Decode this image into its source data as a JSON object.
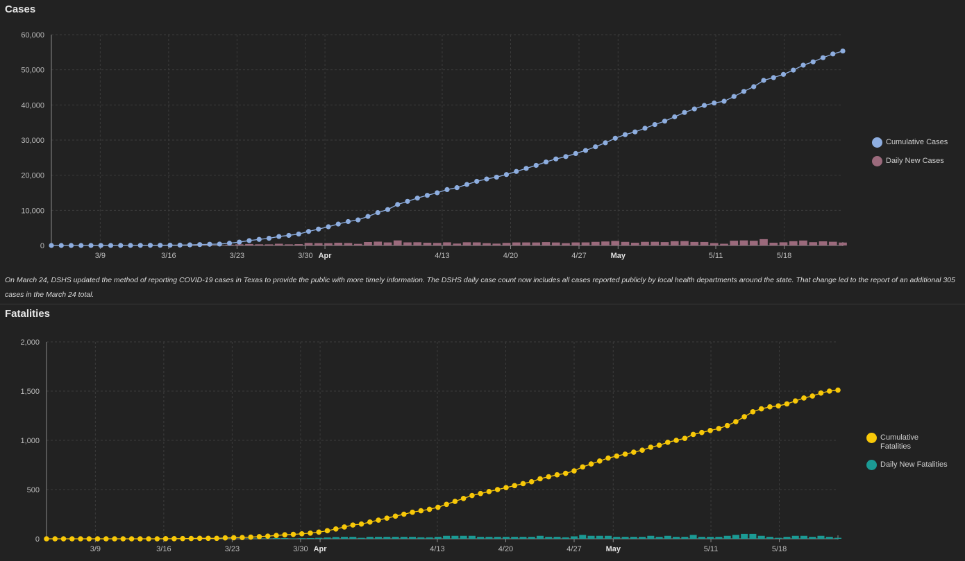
{
  "colors": {
    "background": "#222222",
    "grid": "#3c3c3c",
    "axis": "#8a8a8a",
    "cumulative_cases": "#8eaee0",
    "daily_cases": "#9b6a7c",
    "cumulative_fatalities": "#f8c808",
    "daily_fatalities": "#1b9a94"
  },
  "cases": {
    "title": "Cases",
    "note": "On March 24, DSHS updated the method of reporting COVID-19 cases in Texas to provide the public with more timely information. The DSHS daily case count now includes all cases reported publicly by local health departments around the state. That change led to the report of an additional 305 cases in the March 24 total.",
    "legend": [
      {
        "label": "Cumulative Cases",
        "color": "#8eaee0"
      },
      {
        "label": "Daily New Cases",
        "color": "#9b6a7c"
      }
    ]
  },
  "fatalities": {
    "title": "Fatalities",
    "legend": [
      {
        "label": "Cumulative Fatalities",
        "color": "#f8c808"
      },
      {
        "label": "Daily New Fatalities",
        "color": "#1b9a94"
      }
    ]
  },
  "chart_data": [
    {
      "type": "line",
      "title": "Cases",
      "x_start": "2020-03-04",
      "x_end": "2020-05-24",
      "ylim": [
        0,
        60000
      ],
      "yticks": [
        0,
        10000,
        20000,
        30000,
        40000,
        50000,
        60000
      ],
      "ytick_labels": [
        "0",
        "10,000",
        "20,000",
        "30,000",
        "40,000",
        "50,000",
        "60,000"
      ],
      "xticks": [
        {
          "label": "3/9",
          "date": "2020-03-09",
          "bold": false
        },
        {
          "label": "3/16",
          "date": "2020-03-16",
          "bold": false
        },
        {
          "label": "3/23",
          "date": "2020-03-23",
          "bold": false
        },
        {
          "label": "3/30",
          "date": "2020-03-30",
          "bold": false
        },
        {
          "label": "Apr",
          "date": "2020-04-01",
          "bold": true
        },
        {
          "label": "4/13",
          "date": "2020-04-13",
          "bold": false
        },
        {
          "label": "4/20",
          "date": "2020-04-20",
          "bold": false
        },
        {
          "label": "4/27",
          "date": "2020-04-27",
          "bold": false
        },
        {
          "label": "May",
          "date": "2020-05-01",
          "bold": true
        },
        {
          "label": "5/11",
          "date": "2020-05-11",
          "bold": false
        },
        {
          "label": "5/18",
          "date": "2020-05-18",
          "bold": false
        }
      ],
      "grid": true,
      "legend_position": "right",
      "series": [
        {
          "name": "Cumulative Cases",
          "kind": "line-markers",
          "values": [
            1,
            1,
            2,
            3,
            8,
            8,
            12,
            21,
            27,
            39,
            56,
            64,
            85,
            110,
            173,
            260,
            352,
            410,
            643,
            974,
            1396,
            1731,
            2052,
            2552,
            2877,
            3266,
            3997,
            4669,
            5330,
            6110,
            6812,
            7276,
            8262,
            9353,
            10230,
            11671,
            12561,
            13484,
            14275,
            15006,
            15907,
            16455,
            17371,
            18260,
            18923,
            19458,
            20196,
            21069,
            21944,
            22806,
            23773,
            24631,
            25297,
            26171,
            27054,
            28087,
            29229,
            30522,
            31548,
            32332,
            33369,
            34422,
            35390,
            36609,
            37860,
            38869,
            39869,
            40555,
            41048,
            42403,
            43851,
            45198,
            46999,
            47784,
            48693,
            49912,
            51323,
            52268,
            53449,
            54509,
            55348
          ]
        },
        {
          "name": "Daily New Cases",
          "kind": "bar",
          "values": [
            1,
            0,
            1,
            1,
            5,
            0,
            4,
            9,
            6,
            12,
            17,
            8,
            21,
            25,
            63,
            87,
            92,
            58,
            233,
            331,
            422,
            335,
            321,
            500,
            325,
            389,
            731,
            672,
            661,
            780,
            702,
            464,
            986,
            1091,
            877,
            1441,
            890,
            923,
            791,
            731,
            901,
            548,
            916,
            889,
            663,
            535,
            738,
            873,
            875,
            862,
            967,
            858,
            666,
            874,
            883,
            1033,
            1142,
            1293,
            1026,
            784,
            1037,
            1053,
            968,
            1219,
            1251,
            1009,
            1000,
            686,
            493,
            1355,
            1448,
            1347,
            1801,
            785,
            909,
            1219,
            1411,
            945,
            1181,
            1060,
            839
          ]
        }
      ]
    },
    {
      "type": "line",
      "title": "Fatalities",
      "x_start": "2020-03-04",
      "x_end": "2020-05-24",
      "ylim": [
        0,
        2000
      ],
      "yticks": [
        0,
        500,
        1000,
        1500,
        2000
      ],
      "ytick_labels": [
        "0",
        "500",
        "1,000",
        "1,500",
        "2,000"
      ],
      "xticks": [
        {
          "label": "3/9",
          "date": "2020-03-09",
          "bold": false
        },
        {
          "label": "3/16",
          "date": "2020-03-16",
          "bold": false
        },
        {
          "label": "3/23",
          "date": "2020-03-23",
          "bold": false
        },
        {
          "label": "3/30",
          "date": "2020-03-30",
          "bold": false
        },
        {
          "label": "Apr",
          "date": "2020-04-01",
          "bold": true
        },
        {
          "label": "4/13",
          "date": "2020-04-13",
          "bold": false
        },
        {
          "label": "4/20",
          "date": "2020-04-20",
          "bold": false
        },
        {
          "label": "4/27",
          "date": "2020-04-27",
          "bold": false
        },
        {
          "label": "May",
          "date": "2020-05-01",
          "bold": true
        },
        {
          "label": "5/11",
          "date": "2020-05-11",
          "bold": false
        },
        {
          "label": "5/18",
          "date": "2020-05-18",
          "bold": false
        }
      ],
      "grid": true,
      "legend_position": "right",
      "series": [
        {
          "name": "Cumulative Fatalities",
          "kind": "line-markers",
          "values": [
            0,
            0,
            0,
            0,
            0,
            0,
            0,
            0,
            0,
            0,
            0,
            0,
            0,
            0,
            1,
            1,
            2,
            3,
            5,
            5,
            5,
            9,
            11,
            13,
            17,
            22,
            27,
            34,
            41,
            45,
            51,
            58,
            68,
            82,
            100,
            120,
            140,
            150,
            170,
            190,
            210,
            230,
            250,
            270,
            285,
            300,
            320,
            350,
            380,
            410,
            440,
            460,
            480,
            500,
            520,
            540,
            560,
            580,
            610,
            630,
            650,
            665,
            690,
            730,
            760,
            790,
            820,
            840,
            860,
            880,
            900,
            930,
            950,
            980,
            1000,
            1020,
            1060,
            1080,
            1100,
            1120,
            1150,
            1190,
            1240,
            1290,
            1320,
            1340,
            1350,
            1370,
            1400,
            1430,
            1450,
            1480,
            1500,
            1510
          ]
        },
        {
          "name": "Daily New Fatalities",
          "kind": "bar",
          "values": [
            0,
            0,
            0,
            0,
            0,
            0,
            0,
            0,
            0,
            0,
            0,
            0,
            0,
            0,
            1,
            0,
            1,
            1,
            2,
            0,
            0,
            4,
            2,
            2,
            4,
            5,
            5,
            7,
            7,
            4,
            6,
            7,
            10,
            14,
            18,
            20,
            20,
            10,
            20,
            20,
            20,
            20,
            20,
            20,
            15,
            15,
            20,
            30,
            30,
            30,
            30,
            20,
            20,
            20,
            20,
            20,
            20,
            20,
            30,
            20,
            20,
            15,
            25,
            40,
            30,
            30,
            30,
            20,
            20,
            20,
            20,
            30,
            20,
            30,
            20,
            20,
            40,
            20,
            20,
            20,
            30,
            40,
            50,
            50,
            30,
            20,
            10,
            20,
            30,
            30,
            20,
            30,
            20,
            10
          ]
        }
      ]
    }
  ]
}
